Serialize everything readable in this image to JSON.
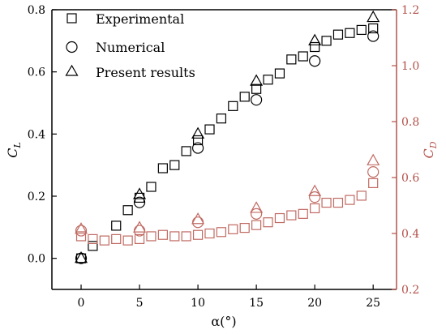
{
  "chart_data": {
    "type": "scatter",
    "x_axis": {
      "label": "α(°)",
      "range": [
        -2.5,
        27
      ],
      "ticks": [
        0,
        5,
        10,
        15,
        20,
        25
      ]
    },
    "y_left": {
      "label_main": "C",
      "label_sub": "L",
      "range": [
        -0.1,
        0.8
      ],
      "ticks": [
        "0.0",
        "0.2",
        "0.4",
        "0.6",
        "0.8"
      ],
      "color": "#000000"
    },
    "y_right": {
      "label_main": "C",
      "label_sub": "D",
      "range": [
        0.2,
        1.2
      ],
      "ticks": [
        "0.2",
        "0.4",
        "0.6",
        "0.8",
        "1.0",
        "1.2"
      ],
      "color": "#b3524a"
    },
    "legend": {
      "position": "top-left",
      "entries": [
        {
          "marker": "square",
          "label": "Experimental"
        },
        {
          "marker": "circle",
          "label": "Numerical"
        },
        {
          "marker": "triangle",
          "label": "Present results"
        }
      ]
    },
    "series": [
      {
        "name": "Experimental",
        "axis": "left",
        "marker": "square",
        "color": "#000000",
        "x": [
          0,
          1,
          3,
          4,
          5,
          6,
          7,
          8,
          9,
          10,
          11,
          12,
          13,
          14,
          15,
          16,
          17,
          18,
          19,
          20,
          21,
          22,
          23,
          24,
          25
        ],
        "y": [
          0.0,
          0.04,
          0.105,
          0.155,
          0.195,
          0.23,
          0.29,
          0.3,
          0.345,
          0.38,
          0.415,
          0.45,
          0.49,
          0.52,
          0.545,
          0.575,
          0.595,
          0.64,
          0.65,
          0.68,
          0.7,
          0.72,
          0.725,
          0.735,
          0.74
        ]
      },
      {
        "name": "Numerical",
        "axis": "left",
        "marker": "circle",
        "color": "#000000",
        "x": [
          0,
          5,
          10,
          15,
          20,
          25
        ],
        "y": [
          0.0,
          0.18,
          0.355,
          0.51,
          0.635,
          0.715
        ]
      },
      {
        "name": "Present results",
        "axis": "left",
        "marker": "triangle",
        "color": "#000000",
        "x": [
          0,
          5,
          10,
          15,
          20,
          25
        ],
        "y": [
          0.0,
          0.205,
          0.4,
          0.57,
          0.7,
          0.775
        ]
      },
      {
        "name": "Experimental",
        "axis": "right",
        "marker": "square",
        "color": "#c06a62",
        "x": [
          0,
          1,
          2,
          3,
          4,
          5,
          6,
          7,
          8,
          9,
          10,
          11,
          12,
          13,
          14,
          15,
          16,
          17,
          18,
          19,
          20,
          21,
          22,
          23,
          24,
          25
        ],
        "y": [
          0.39,
          0.38,
          0.375,
          0.38,
          0.375,
          0.38,
          0.39,
          0.395,
          0.39,
          0.39,
          0.395,
          0.4,
          0.405,
          0.415,
          0.42,
          0.43,
          0.44,
          0.455,
          0.465,
          0.47,
          0.49,
          0.51,
          0.51,
          0.52,
          0.535,
          0.58
        ]
      },
      {
        "name": "Numerical",
        "axis": "right",
        "marker": "circle",
        "color": "#c06a62",
        "x": [
          0,
          5,
          10,
          15,
          20,
          25
        ],
        "y": [
          0.41,
          0.41,
          0.44,
          0.47,
          0.53,
          0.62
        ]
      },
      {
        "name": "Present results",
        "axis": "right",
        "marker": "triangle",
        "color": "#c06a62",
        "x": [
          0,
          5,
          10,
          15,
          20,
          25
        ],
        "y": [
          0.415,
          0.42,
          0.45,
          0.49,
          0.55,
          0.66
        ]
      }
    ]
  }
}
